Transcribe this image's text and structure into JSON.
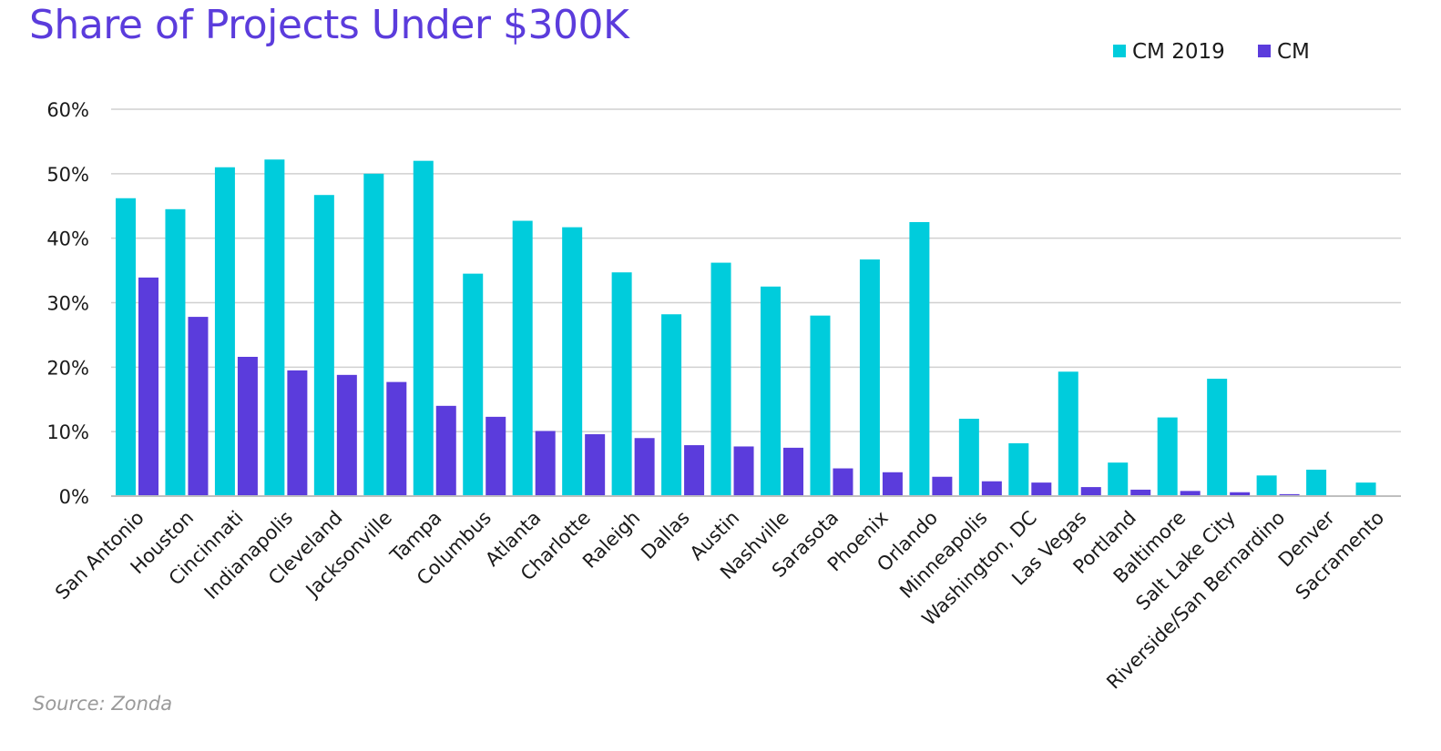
{
  "chart_data": {
    "type": "bar",
    "title": "Share of Projects Under $300K",
    "source": "Source: Zonda",
    "xlabel": "",
    "ylabel": "",
    "ylim": [
      0,
      0.6
    ],
    "yticks": [
      {
        "value": 0,
        "label": "0%"
      },
      {
        "value": 0.1,
        "label": "10%"
      },
      {
        "value": 0.2,
        "label": "20%"
      },
      {
        "value": 0.3,
        "label": "30%"
      },
      {
        "value": 0.4,
        "label": "40%"
      },
      {
        "value": 0.5,
        "label": "50%"
      },
      {
        "value": 0.6,
        "label": "60%"
      }
    ],
    "grid": true,
    "legend_position": "top-right",
    "categories": [
      "San Antonio",
      "Houston",
      "Cincinnati",
      "Indianapolis",
      "Cleveland",
      "Jacksonville",
      "Tampa",
      "Columbus",
      "Atlanta",
      "Charlotte",
      "Raleigh",
      "Dallas",
      "Austin",
      "Nashville",
      "Sarasota",
      "Phoenix",
      "Orlando",
      "Minneapolis",
      "Washington, DC",
      "Las Vegas",
      "Portland",
      "Baltimore",
      "Salt Lake City",
      "Riverside/San Bernardino",
      "Denver",
      "Sacramento"
    ],
    "series": [
      {
        "name": "CM 2019",
        "color": "#00CCDC",
        "values": [
          0.462,
          0.445,
          0.51,
          0.522,
          0.467,
          0.5,
          0.52,
          0.345,
          0.427,
          0.417,
          0.347,
          0.282,
          0.362,
          0.325,
          0.28,
          0.367,
          0.425,
          0.12,
          0.082,
          0.193,
          0.052,
          0.122,
          0.182,
          0.032,
          0.041,
          0.021
        ]
      },
      {
        "name": "CM",
        "color": "#5B3CDC",
        "values": [
          0.339,
          0.278,
          0.216,
          0.195,
          0.188,
          0.177,
          0.14,
          0.123,
          0.101,
          0.096,
          0.09,
          0.079,
          0.077,
          0.075,
          0.043,
          0.037,
          0.03,
          0.023,
          0.021,
          0.014,
          0.01,
          0.008,
          0.006,
          0.003,
          0.0,
          0.0
        ]
      }
    ]
  },
  "colors": {
    "title": "#5B3CDC",
    "grid": "#d0d0d0",
    "axis": "#bfbfbf",
    "source": "#9a9a9a"
  }
}
